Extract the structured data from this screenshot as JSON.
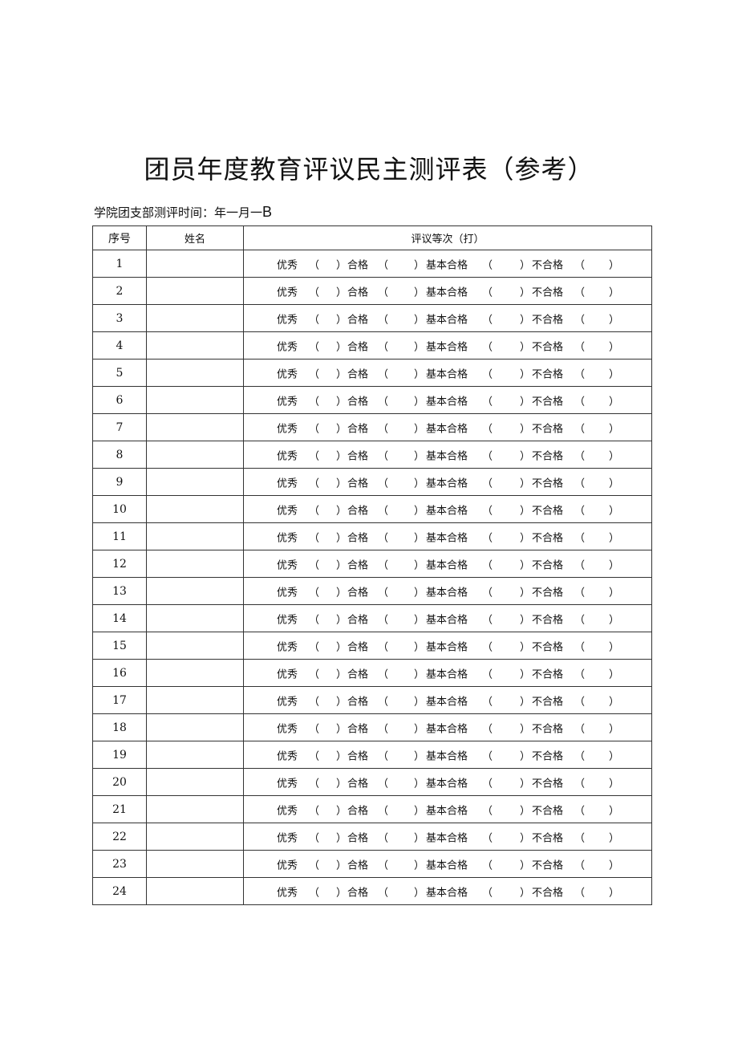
{
  "title": "团员年度教育评议民主测评表（参考）",
  "subtitle": {
    "text": "学院团支部测评时间：年一月一",
    "suffix": "B"
  },
  "table": {
    "headers": [
      "序号",
      "姓名",
      "评议等次（打）"
    ],
    "rating_options": [
      "优秀",
      "合格",
      "基本合格",
      "不合格"
    ],
    "rows": [
      1,
      2,
      3,
      4,
      5,
      6,
      7,
      8,
      9,
      10,
      11,
      12,
      13,
      14,
      15,
      16,
      17,
      18,
      19,
      20,
      21,
      22,
      23,
      24
    ]
  }
}
